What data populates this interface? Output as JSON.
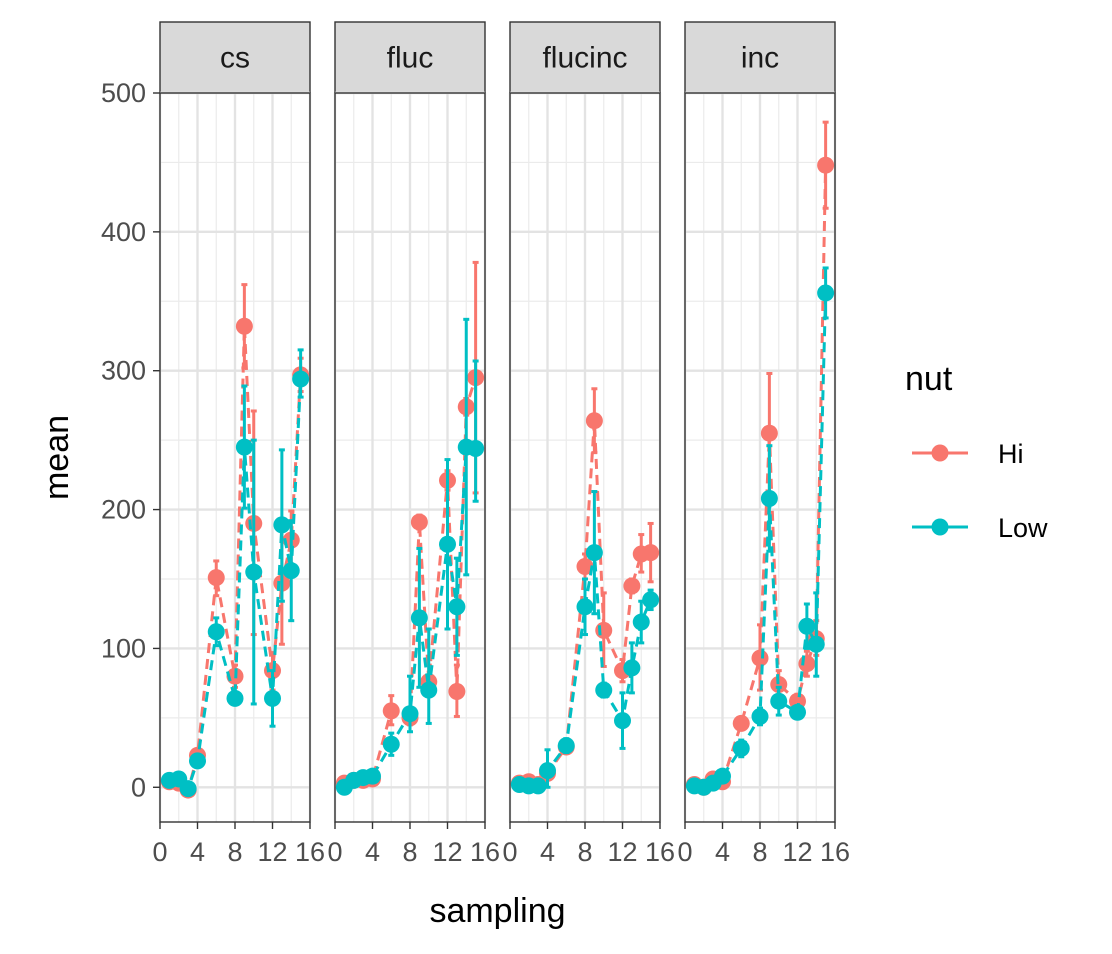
{
  "chart_data": {
    "type": "line",
    "xlabel": "sampling",
    "ylabel": "mean",
    "xlim": [
      0,
      16
    ],
    "ylim": [
      -25,
      500
    ],
    "x_ticks": [
      0,
      4,
      8,
      12,
      16
    ],
    "x_tick_labels": [
      "0",
      "4",
      "8",
      "12",
      "16"
    ],
    "y_ticks": [
      0,
      100,
      200,
      300,
      400,
      500
    ],
    "y_tick_labels": [
      "0",
      "100",
      "200",
      "300",
      "400",
      "500"
    ],
    "grid": true,
    "legend": {
      "title": "nut",
      "position": "right"
    },
    "series_styles": [
      {
        "name": "Hi",
        "color": "#F8766D"
      },
      {
        "name": "Low",
        "color": "#00BFC4"
      }
    ],
    "panels": [
      {
        "label": "cs",
        "series": [
          {
            "name": "Hi",
            "points": [
              {
                "x": 1,
                "y": 4,
                "lo": 1,
                "hi": 7
              },
              {
                "x": 2,
                "y": 3,
                "lo": 0,
                "hi": 6
              },
              {
                "x": 3,
                "y": -2,
                "lo": -4,
                "hi": 1
              },
              {
                "x": 4,
                "y": 23,
                "lo": 19,
                "hi": 27
              },
              {
                "x": 6,
                "y": 151,
                "lo": 138,
                "hi": 163
              },
              {
                "x": 8,
                "y": 80,
                "lo": 72,
                "hi": 88
              },
              {
                "x": 9,
                "y": 332,
                "lo": 302,
                "hi": 362
              },
              {
                "x": 10,
                "y": 190,
                "lo": 110,
                "hi": 271
              },
              {
                "x": 12,
                "y": 84,
                "lo": 70,
                "hi": 97
              },
              {
                "x": 13,
                "y": 147,
                "lo": 103,
                "hi": 191
              },
              {
                "x": 14,
                "y": 178,
                "lo": 158,
                "hi": 199
              },
              {
                "x": 15,
                "y": 297,
                "lo": 285,
                "hi": 309
              }
            ]
          },
          {
            "name": "Low",
            "points": [
              {
                "x": 1,
                "y": 5,
                "lo": 3,
                "hi": 8
              },
              {
                "x": 2,
                "y": 6,
                "lo": 4,
                "hi": 9
              },
              {
                "x": 3,
                "y": -1,
                "lo": -3,
                "hi": 1
              },
              {
                "x": 4,
                "y": 19,
                "lo": 15,
                "hi": 23
              },
              {
                "x": 6,
                "y": 112,
                "lo": 102,
                "hi": 122
              },
              {
                "x": 8,
                "y": 64,
                "lo": 60,
                "hi": 68
              },
              {
                "x": 9,
                "y": 245,
                "lo": 201,
                "hi": 289
              },
              {
                "x": 10,
                "y": 155,
                "lo": 60,
                "hi": 250
              },
              {
                "x": 12,
                "y": 64,
                "lo": 44,
                "hi": 84
              },
              {
                "x": 13,
                "y": 189,
                "lo": 134,
                "hi": 243
              },
              {
                "x": 14,
                "y": 156,
                "lo": 120,
                "hi": 192
              },
              {
                "x": 15,
                "y": 294,
                "lo": 281,
                "hi": 315
              }
            ]
          }
        ]
      },
      {
        "label": "fluc",
        "series": [
          {
            "name": "Hi",
            "points": [
              {
                "x": 1,
                "y": 3,
                "lo": 0,
                "hi": 6
              },
              {
                "x": 2,
                "y": 5,
                "lo": 2,
                "hi": 8
              },
              {
                "x": 3,
                "y": 5,
                "lo": 3,
                "hi": 8
              },
              {
                "x": 4,
                "y": 6,
                "lo": 2,
                "hi": 10
              },
              {
                "x": 6,
                "y": 55,
                "lo": 45,
                "hi": 66
              },
              {
                "x": 8,
                "y": 50,
                "lo": 45,
                "hi": 55
              },
              {
                "x": 9,
                "y": 191,
                "lo": 186,
                "hi": 196
              },
              {
                "x": 10,
                "y": 76,
                "lo": 66,
                "hi": 88
              },
              {
                "x": 12,
                "y": 221,
                "lo": 214,
                "hi": 228
              },
              {
                "x": 13,
                "y": 69,
                "lo": 51,
                "hi": 88
              },
              {
                "x": 14,
                "y": 274,
                "lo": 268,
                "hi": 280
              },
              {
                "x": 15,
                "y": 295,
                "lo": 212,
                "hi": 378
              }
            ]
          },
          {
            "name": "Low",
            "points": [
              {
                "x": 1,
                "y": 0,
                "lo": -2,
                "hi": 3
              },
              {
                "x": 2,
                "y": 5,
                "lo": 2,
                "hi": 8
              },
              {
                "x": 3,
                "y": 7,
                "lo": 4,
                "hi": 10
              },
              {
                "x": 4,
                "y": 8,
                "lo": 5,
                "hi": 12
              },
              {
                "x": 6,
                "y": 31,
                "lo": 23,
                "hi": 39
              },
              {
                "x": 8,
                "y": 53,
                "lo": 40,
                "hi": 80
              },
              {
                "x": 9,
                "y": 122,
                "lo": 72,
                "hi": 172
              },
              {
                "x": 10,
                "y": 70,
                "lo": 46,
                "hi": 114
              },
              {
                "x": 12,
                "y": 175,
                "lo": 114,
                "hi": 236
              },
              {
                "x": 13,
                "y": 130,
                "lo": 95,
                "hi": 165
              },
              {
                "x": 14,
                "y": 245,
                "lo": 153,
                "hi": 337
              },
              {
                "x": 15,
                "y": 244,
                "lo": 206,
                "hi": 307
              }
            ]
          }
        ]
      },
      {
        "label": "flucinc",
        "series": [
          {
            "name": "Hi",
            "points": [
              {
                "x": 1,
                "y": 3,
                "lo": 1,
                "hi": 6
              },
              {
                "x": 2,
                "y": 4,
                "lo": 1,
                "hi": 7
              },
              {
                "x": 3,
                "y": 2,
                "lo": 0,
                "hi": 5
              },
              {
                "x": 4,
                "y": 10,
                "lo": 6,
                "hi": 14
              },
              {
                "x": 6,
                "y": 29,
                "lo": 25,
                "hi": 33
              },
              {
                "x": 8,
                "y": 159,
                "lo": 150,
                "hi": 168
              },
              {
                "x": 9,
                "y": 264,
                "lo": 241,
                "hi": 287
              },
              {
                "x": 10,
                "y": 113,
                "lo": 87,
                "hi": 140
              },
              {
                "x": 12,
                "y": 84,
                "lo": 76,
                "hi": 92
              },
              {
                "x": 13,
                "y": 145,
                "lo": 140,
                "hi": 150
              },
              {
                "x": 14,
                "y": 168,
                "lo": 155,
                "hi": 182
              },
              {
                "x": 15,
                "y": 169,
                "lo": 148,
                "hi": 190
              }
            ]
          },
          {
            "name": "Low",
            "points": [
              {
                "x": 1,
                "y": 2,
                "lo": 0,
                "hi": 5
              },
              {
                "x": 2,
                "y": 1,
                "lo": -1,
                "hi": 4
              },
              {
                "x": 3,
                "y": 1,
                "lo": -1,
                "hi": 4
              },
              {
                "x": 4,
                "y": 12,
                "lo": 0,
                "hi": 27
              },
              {
                "x": 6,
                "y": 30,
                "lo": 25,
                "hi": 35
              },
              {
                "x": 8,
                "y": 130,
                "lo": 110,
                "hi": 150
              },
              {
                "x": 9,
                "y": 169,
                "lo": 125,
                "hi": 213
              },
              {
                "x": 10,
                "y": 70,
                "lo": 65,
                "hi": 75
              },
              {
                "x": 12,
                "y": 48,
                "lo": 28,
                "hi": 68
              },
              {
                "x": 13,
                "y": 86,
                "lo": 68,
                "hi": 104
              },
              {
                "x": 14,
                "y": 119,
                "lo": 104,
                "hi": 134
              },
              {
                "x": 15,
                "y": 135,
                "lo": 128,
                "hi": 142
              }
            ]
          }
        ]
      },
      {
        "label": "inc",
        "series": [
          {
            "name": "Hi",
            "points": [
              {
                "x": 1,
                "y": 2,
                "lo": 0,
                "hi": 5
              },
              {
                "x": 2,
                "y": 0,
                "lo": -2,
                "hi": 2
              },
              {
                "x": 3,
                "y": 6,
                "lo": 3,
                "hi": 9
              },
              {
                "x": 4,
                "y": 4,
                "lo": 1,
                "hi": 7
              },
              {
                "x": 6,
                "y": 46,
                "lo": 42,
                "hi": 50
              },
              {
                "x": 8,
                "y": 93,
                "lo": 70,
                "hi": 117
              },
              {
                "x": 9,
                "y": 255,
                "lo": 212,
                "hi": 298
              },
              {
                "x": 10,
                "y": 74,
                "lo": 64,
                "hi": 84
              },
              {
                "x": 12,
                "y": 62,
                "lo": 57,
                "hi": 67
              },
              {
                "x": 13,
                "y": 89,
                "lo": 80,
                "hi": 98
              },
              {
                "x": 14,
                "y": 107,
                "lo": 95,
                "hi": 120
              },
              {
                "x": 15,
                "y": 448,
                "lo": 417,
                "hi": 479
              }
            ]
          },
          {
            "name": "Low",
            "points": [
              {
                "x": 1,
                "y": 1,
                "lo": -1,
                "hi": 3
              },
              {
                "x": 2,
                "y": 0,
                "lo": -2,
                "hi": 2
              },
              {
                "x": 3,
                "y": 3,
                "lo": 1,
                "hi": 5
              },
              {
                "x": 4,
                "y": 8,
                "lo": 5,
                "hi": 11
              },
              {
                "x": 6,
                "y": 28,
                "lo": 22,
                "hi": 34
              },
              {
                "x": 8,
                "y": 51,
                "lo": 45,
                "hi": 57
              },
              {
                "x": 9,
                "y": 208,
                "lo": 170,
                "hi": 246
              },
              {
                "x": 10,
                "y": 62,
                "lo": 52,
                "hi": 72
              },
              {
                "x": 12,
                "y": 54,
                "lo": 50,
                "hi": 58
              },
              {
                "x": 13,
                "y": 116,
                "lo": 100,
                "hi": 132
              },
              {
                "x": 14,
                "y": 103,
                "lo": 80,
                "hi": 140
              },
              {
                "x": 15,
                "y": 356,
                "lo": 338,
                "hi": 374
              }
            ]
          }
        ]
      }
    ]
  }
}
